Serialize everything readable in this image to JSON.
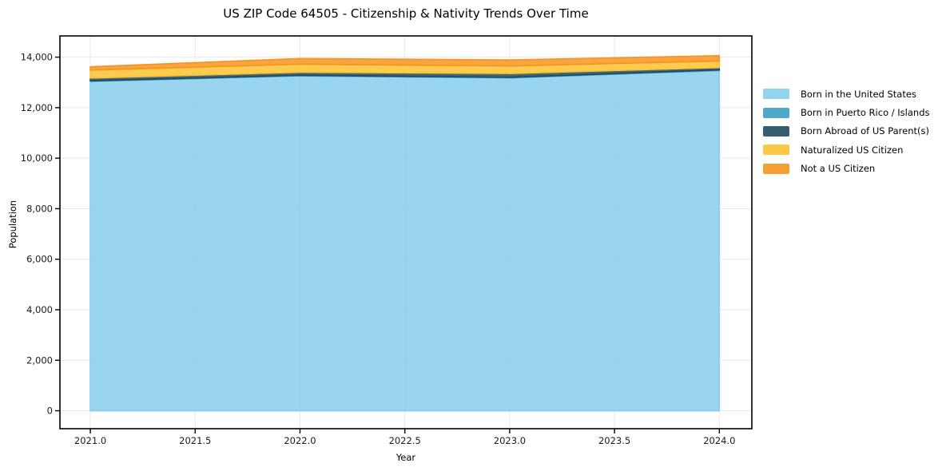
{
  "chart_data": {
    "type": "area",
    "stacked": true,
    "title": "US ZIP Code 64505 - Citizenship & Nativity Trends Over Time",
    "xlabel": "Year",
    "ylabel": "Population",
    "x": [
      2021,
      2022,
      2023,
      2024
    ],
    "series": [
      {
        "name": "Born in the United States",
        "color": "#87CEEB",
        "values": [
          13040,
          13260,
          13180,
          13470
        ]
      },
      {
        "name": "Born in Puerto Rico / Islands",
        "color": "#3D9EC4",
        "values": [
          20,
          20,
          20,
          25
        ]
      },
      {
        "name": "Born Abroad of US Parent(s)",
        "color": "#1F4A5F",
        "values": [
          110,
          120,
          150,
          90
        ]
      },
      {
        "name": "Naturalized US Citizen",
        "color": "#FDC231",
        "values": [
          315,
          320,
          300,
          260
        ]
      },
      {
        "name": "Not a US Citizen",
        "color": "#F7941F",
        "values": [
          135,
          225,
          240,
          215
        ]
      }
    ],
    "totals": [
      13620,
      13945,
      13890,
      14060
    ],
    "axes": {
      "xlim": [
        2020.855,
        2024.155
      ],
      "ylim": [
        -710,
        14840
      ],
      "x_ticks": [
        2021.0,
        2021.5,
        2022.0,
        2022.5,
        2023.0,
        2023.5,
        2024.0
      ],
      "x_tick_labels": [
        "2021.0",
        "2021.5",
        "2022.0",
        "2022.5",
        "2023.0",
        "2023.5",
        "2024.0"
      ],
      "y_ticks": [
        0,
        2000,
        4000,
        6000,
        8000,
        10000,
        12000,
        14000
      ],
      "y_tick_labels": [
        "0",
        "2,000",
        "4,000",
        "6,000",
        "8,000",
        "10,000",
        "12,000",
        "14,000"
      ],
      "grid": true
    },
    "legend_position": "right-outside"
  },
  "style": {
    "background": "#ffffff",
    "grid_color": "#e9e9e9",
    "spine_color": "#000000",
    "tick_label_color": "#1a1a1a"
  }
}
